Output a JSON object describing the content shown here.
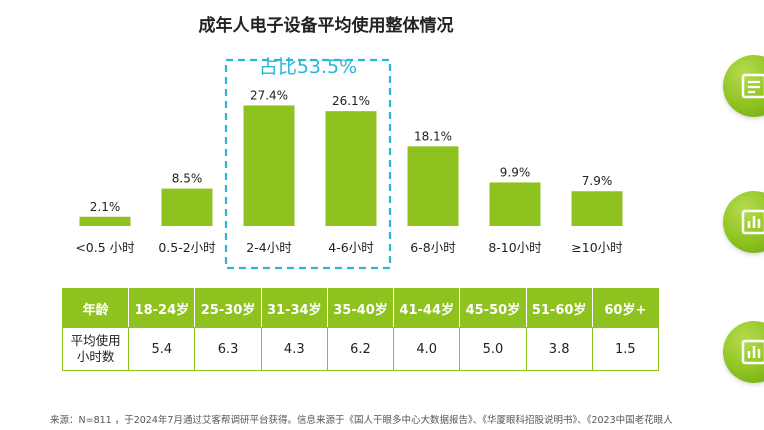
{
  "chart_data": {
    "type": "bar",
    "title": "成年人电子设备平均使用整体情况",
    "categories": [
      "<0.5 小时",
      "0.5-2小时",
      "2-4小时",
      "4-6小时",
      "6-8小时",
      "8-10小时",
      "≥10小时"
    ],
    "values": [
      2.1,
      8.5,
      27.4,
      26.1,
      18.1,
      9.9,
      7.9
    ],
    "value_labels": [
      "2.1%",
      "8.5%",
      "27.4%",
      "26.1%",
      "18.1%",
      "9.9%",
      "7.9%"
    ],
    "unit": "%",
    "highlight": {
      "categories": [
        "2-4小时",
        "4-6小时"
      ],
      "label": "占比53.5%"
    },
    "bar_color": "#8dc21f",
    "highlight_color": "#29b7d6",
    "grid": false,
    "legend": "none"
  },
  "table": {
    "header": [
      "年龄",
      "18-24岁",
      "25-30岁",
      "31-34岁",
      "35-40岁",
      "41-44岁",
      "45-50岁",
      "51-60岁",
      "60岁+"
    ],
    "row_label_line1": "平均使用",
    "row_label_line2": "小时数",
    "values": [
      "5.4",
      "6.3",
      "4.3",
      "6.2",
      "4.0",
      "5.0",
      "3.8",
      "1.5"
    ]
  },
  "footnote": "来源：N=811 ，于2024年7月通过艾客帮调研平台获得。信息来源于《国人干眼多中心大数据报告》、《华厦眼科招股说明书》、《2023中国老花眼人",
  "side_icons": [
    "document-icon",
    "chart-icon",
    "chart-icon"
  ]
}
